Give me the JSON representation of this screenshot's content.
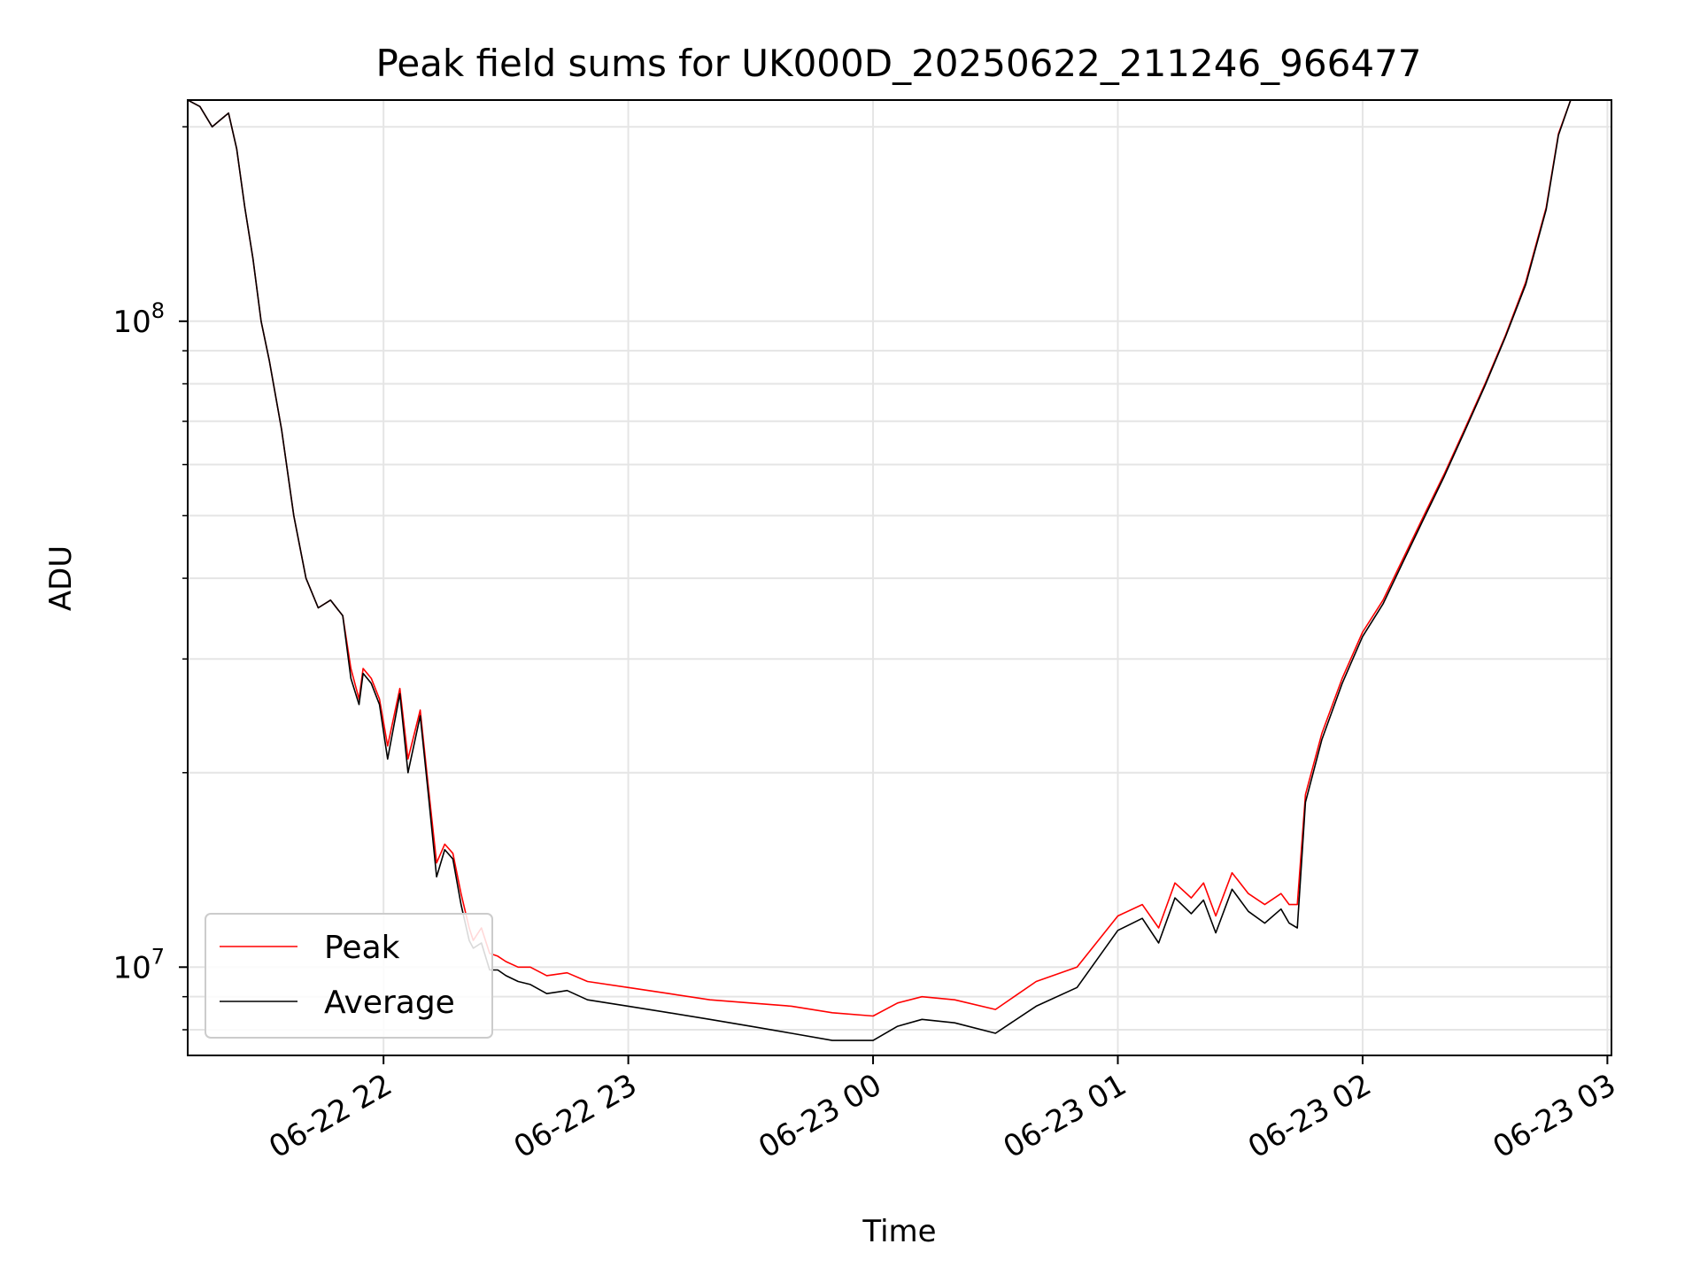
{
  "chart_data": {
    "type": "line",
    "title": "Peak field sums for UK000D_20250622_211246_966477",
    "xlabel": "Time",
    "ylabel": "ADU",
    "yscale": "log",
    "ylim": [
      7300000,
      220000000
    ],
    "xlim": [
      "2025-06-22 21:12",
      "2025-06-23 03:01"
    ],
    "grid": true,
    "legend_position": "lower-left",
    "xtick_labels": [
      "06-22 22",
      "06-22 23",
      "06-23 00",
      "06-23 01",
      "06-23 02",
      "06-23 03"
    ],
    "xtick_values": [
      "2025-06-22 22:00",
      "2025-06-22 23:00",
      "2025-06-23 00:00",
      "2025-06-23 01:00",
      "2025-06-23 02:00",
      "2025-06-23 03:00"
    ],
    "ytick_labels": [
      {
        "base": "10",
        "exp": "7",
        "value": 10000000
      },
      {
        "base": "10",
        "exp": "8",
        "value": 100000000
      }
    ],
    "colors": {
      "peak": "#ff0000",
      "average": "#000000",
      "grid": "#e5e5e5"
    },
    "series": [
      {
        "name": "Peak",
        "x": [
          "2025-06-22 21:12",
          "2025-06-22 21:15",
          "2025-06-22 21:18",
          "2025-06-22 21:20",
          "2025-06-22 21:22",
          "2025-06-22 21:24",
          "2025-06-22 21:26",
          "2025-06-22 21:28",
          "2025-06-22 21:30",
          "2025-06-22 21:32",
          "2025-06-22 21:35",
          "2025-06-22 21:38",
          "2025-06-22 21:41",
          "2025-06-22 21:44",
          "2025-06-22 21:47",
          "2025-06-22 21:50",
          "2025-06-22 21:52",
          "2025-06-22 21:54",
          "2025-06-22 21:55",
          "2025-06-22 21:57",
          "2025-06-22 21:59",
          "2025-06-22 22:01",
          "2025-06-22 22:04",
          "2025-06-22 22:06",
          "2025-06-22 22:09",
          "2025-06-22 22:11",
          "2025-06-22 22:13",
          "2025-06-22 22:15",
          "2025-06-22 22:17",
          "2025-06-22 22:19",
          "2025-06-22 22:21",
          "2025-06-22 22:22",
          "2025-06-22 22:24",
          "2025-06-22 22:26",
          "2025-06-22 22:28",
          "2025-06-22 22:30",
          "2025-06-22 22:33",
          "2025-06-22 22:36",
          "2025-06-22 22:40",
          "2025-06-22 22:45",
          "2025-06-22 22:50",
          "2025-06-22 23:00",
          "2025-06-22 23:10",
          "2025-06-22 23:20",
          "2025-06-22 23:30",
          "2025-06-22 23:40",
          "2025-06-22 23:50",
          "2025-06-23 00:00",
          "2025-06-23 00:06",
          "2025-06-23 00:12",
          "2025-06-23 00:20",
          "2025-06-23 00:30",
          "2025-06-23 00:40",
          "2025-06-23 00:50",
          "2025-06-23 01:00",
          "2025-06-23 01:06",
          "2025-06-23 01:10",
          "2025-06-23 01:14",
          "2025-06-23 01:18",
          "2025-06-23 01:21",
          "2025-06-23 01:24",
          "2025-06-23 01:28",
          "2025-06-23 01:32",
          "2025-06-23 01:36",
          "2025-06-23 01:40",
          "2025-06-23 01:42",
          "2025-06-23 01:44",
          "2025-06-23 01:46",
          "2025-06-23 01:50",
          "2025-06-23 01:55",
          "2025-06-23 02:00",
          "2025-06-23 02:05",
          "2025-06-23 02:10",
          "2025-06-23 02:15",
          "2025-06-23 02:20",
          "2025-06-23 02:25",
          "2025-06-23 02:30",
          "2025-06-23 02:35",
          "2025-06-23 02:40",
          "2025-06-23 02:45",
          "2025-06-23 02:48",
          "2025-06-23 02:51"
        ],
        "y": [
          220000000,
          215000000,
          200000000,
          205000000,
          210000000,
          185000000,
          150000000,
          125000000,
          100000000,
          87000000,
          68000000,
          50000000,
          40000000,
          36000000,
          37000000,
          35000000,
          29000000,
          26000000,
          29000000,
          28000000,
          26000000,
          22000000,
          27000000,
          21000000,
          25000000,
          19000000,
          14500000,
          15500000,
          15000000,
          13000000,
          11500000,
          11000000,
          11500000,
          10500000,
          10400000,
          10200000,
          10000000,
          10000000,
          9700000,
          9800000,
          9500000,
          9300000,
          9100000,
          8900000,
          8800000,
          8700000,
          8500000,
          8400000,
          8800000,
          9000000,
          8900000,
          8600000,
          9500000,
          10000000,
          12000000,
          12500000,
          11500000,
          13500000,
          12800000,
          13500000,
          12000000,
          14000000,
          13000000,
          12500000,
          13000000,
          12500000,
          12500000,
          18500000,
          23000000,
          28000000,
          33000000,
          37000000,
          43000000,
          50000000,
          58000000,
          68000000,
          80000000,
          95000000,
          115000000,
          150000000,
          195000000,
          220000000
        ]
      },
      {
        "name": "Average",
        "x": [
          "2025-06-22 21:12",
          "2025-06-22 21:15",
          "2025-06-22 21:18",
          "2025-06-22 21:20",
          "2025-06-22 21:22",
          "2025-06-22 21:24",
          "2025-06-22 21:26",
          "2025-06-22 21:28",
          "2025-06-22 21:30",
          "2025-06-22 21:32",
          "2025-06-22 21:35",
          "2025-06-22 21:38",
          "2025-06-22 21:41",
          "2025-06-22 21:44",
          "2025-06-22 21:47",
          "2025-06-22 21:50",
          "2025-06-22 21:52",
          "2025-06-22 21:54",
          "2025-06-22 21:55",
          "2025-06-22 21:57",
          "2025-06-22 21:59",
          "2025-06-22 22:01",
          "2025-06-22 22:04",
          "2025-06-22 22:06",
          "2025-06-22 22:09",
          "2025-06-22 22:11",
          "2025-06-22 22:13",
          "2025-06-22 22:15",
          "2025-06-22 22:17",
          "2025-06-22 22:19",
          "2025-06-22 22:21",
          "2025-06-22 22:22",
          "2025-06-22 22:24",
          "2025-06-22 22:26",
          "2025-06-22 22:28",
          "2025-06-22 22:30",
          "2025-06-22 22:33",
          "2025-06-22 22:36",
          "2025-06-22 22:40",
          "2025-06-22 22:45",
          "2025-06-22 22:50",
          "2025-06-22 23:00",
          "2025-06-22 23:10",
          "2025-06-22 23:20",
          "2025-06-22 23:30",
          "2025-06-22 23:40",
          "2025-06-22 23:50",
          "2025-06-23 00:00",
          "2025-06-23 00:06",
          "2025-06-23 00:12",
          "2025-06-23 00:20",
          "2025-06-23 00:30",
          "2025-06-23 00:40",
          "2025-06-23 00:50",
          "2025-06-23 01:00",
          "2025-06-23 01:06",
          "2025-06-23 01:10",
          "2025-06-23 01:14",
          "2025-06-23 01:18",
          "2025-06-23 01:21",
          "2025-06-23 01:24",
          "2025-06-23 01:28",
          "2025-06-23 01:32",
          "2025-06-23 01:36",
          "2025-06-23 01:40",
          "2025-06-23 01:42",
          "2025-06-23 01:44",
          "2025-06-23 01:46",
          "2025-06-23 01:50",
          "2025-06-23 01:55",
          "2025-06-23 02:00",
          "2025-06-23 02:05",
          "2025-06-23 02:10",
          "2025-06-23 02:15",
          "2025-06-23 02:20",
          "2025-06-23 02:25",
          "2025-06-23 02:30",
          "2025-06-23 02:35",
          "2025-06-23 02:40",
          "2025-06-23 02:45",
          "2025-06-23 02:48",
          "2025-06-23 02:51"
        ],
        "y": [
          220000000,
          215000000,
          200000000,
          205000000,
          210000000,
          185000000,
          150000000,
          125000000,
          100000000,
          87000000,
          68000000,
          50000000,
          40000000,
          36000000,
          37000000,
          35000000,
          28000000,
          25500000,
          28500000,
          27500000,
          25500000,
          21000000,
          26500000,
          20000000,
          24500000,
          18500000,
          13800000,
          15200000,
          14700000,
          12500000,
          11000000,
          10700000,
          10900000,
          9900000,
          9900000,
          9700000,
          9500000,
          9400000,
          9100000,
          9200000,
          8900000,
          8700000,
          8500000,
          8300000,
          8100000,
          7900000,
          7700000,
          7700000,
          8100000,
          8300000,
          8200000,
          7900000,
          8700000,
          9300000,
          11400000,
          11900000,
          10900000,
          12800000,
          12100000,
          12700000,
          11300000,
          13200000,
          12200000,
          11700000,
          12300000,
          11700000,
          11500000,
          18000000,
          22500000,
          27500000,
          32500000,
          36500000,
          42500000,
          49500000,
          57500000,
          67500000,
          79500000,
          94500000,
          114000000,
          149000000,
          194000000,
          220000000
        ]
      }
    ]
  }
}
